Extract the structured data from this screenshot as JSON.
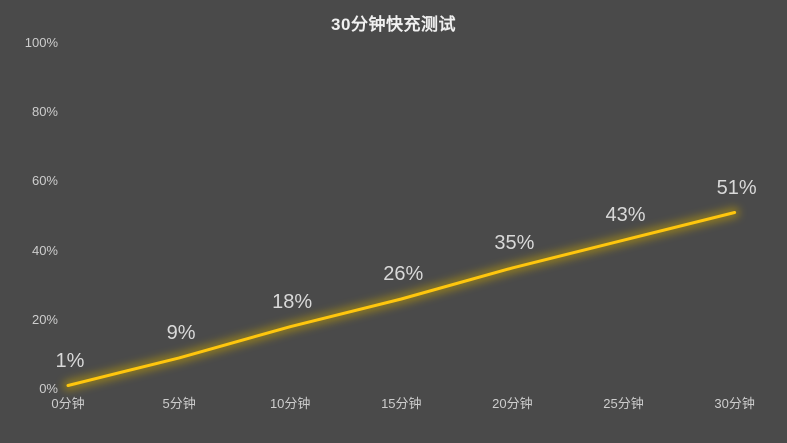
{
  "chart_data": {
    "type": "line",
    "title": "30分钟快充测试",
    "x_labels": [
      "0分钟",
      "5分钟",
      "10分钟",
      "15分钟",
      "20分钟",
      "25分钟",
      "30分钟"
    ],
    "y_tick_labels": [
      "100%",
      "80%",
      "60%",
      "40%",
      "20%",
      "0%"
    ],
    "y_tick_values": [
      100,
      80,
      60,
      40,
      20,
      0
    ],
    "values": [
      1,
      9,
      18,
      26,
      35,
      43,
      51
    ],
    "data_labels": [
      "1%",
      "9%",
      "18%",
      "26%",
      "35%",
      "43%",
      "51%"
    ],
    "xlabel": "",
    "ylabel": "",
    "ylim": [
      0,
      100
    ],
    "grid": false,
    "legend": "none",
    "colors": {
      "background": "#4a4a4a",
      "line": "#ffc60d",
      "line_glow": "#c8a400",
      "title_text": "#f0f0f0",
      "tick_text": "#cdcdcd",
      "data_label_text": "#d9d9d9"
    }
  }
}
